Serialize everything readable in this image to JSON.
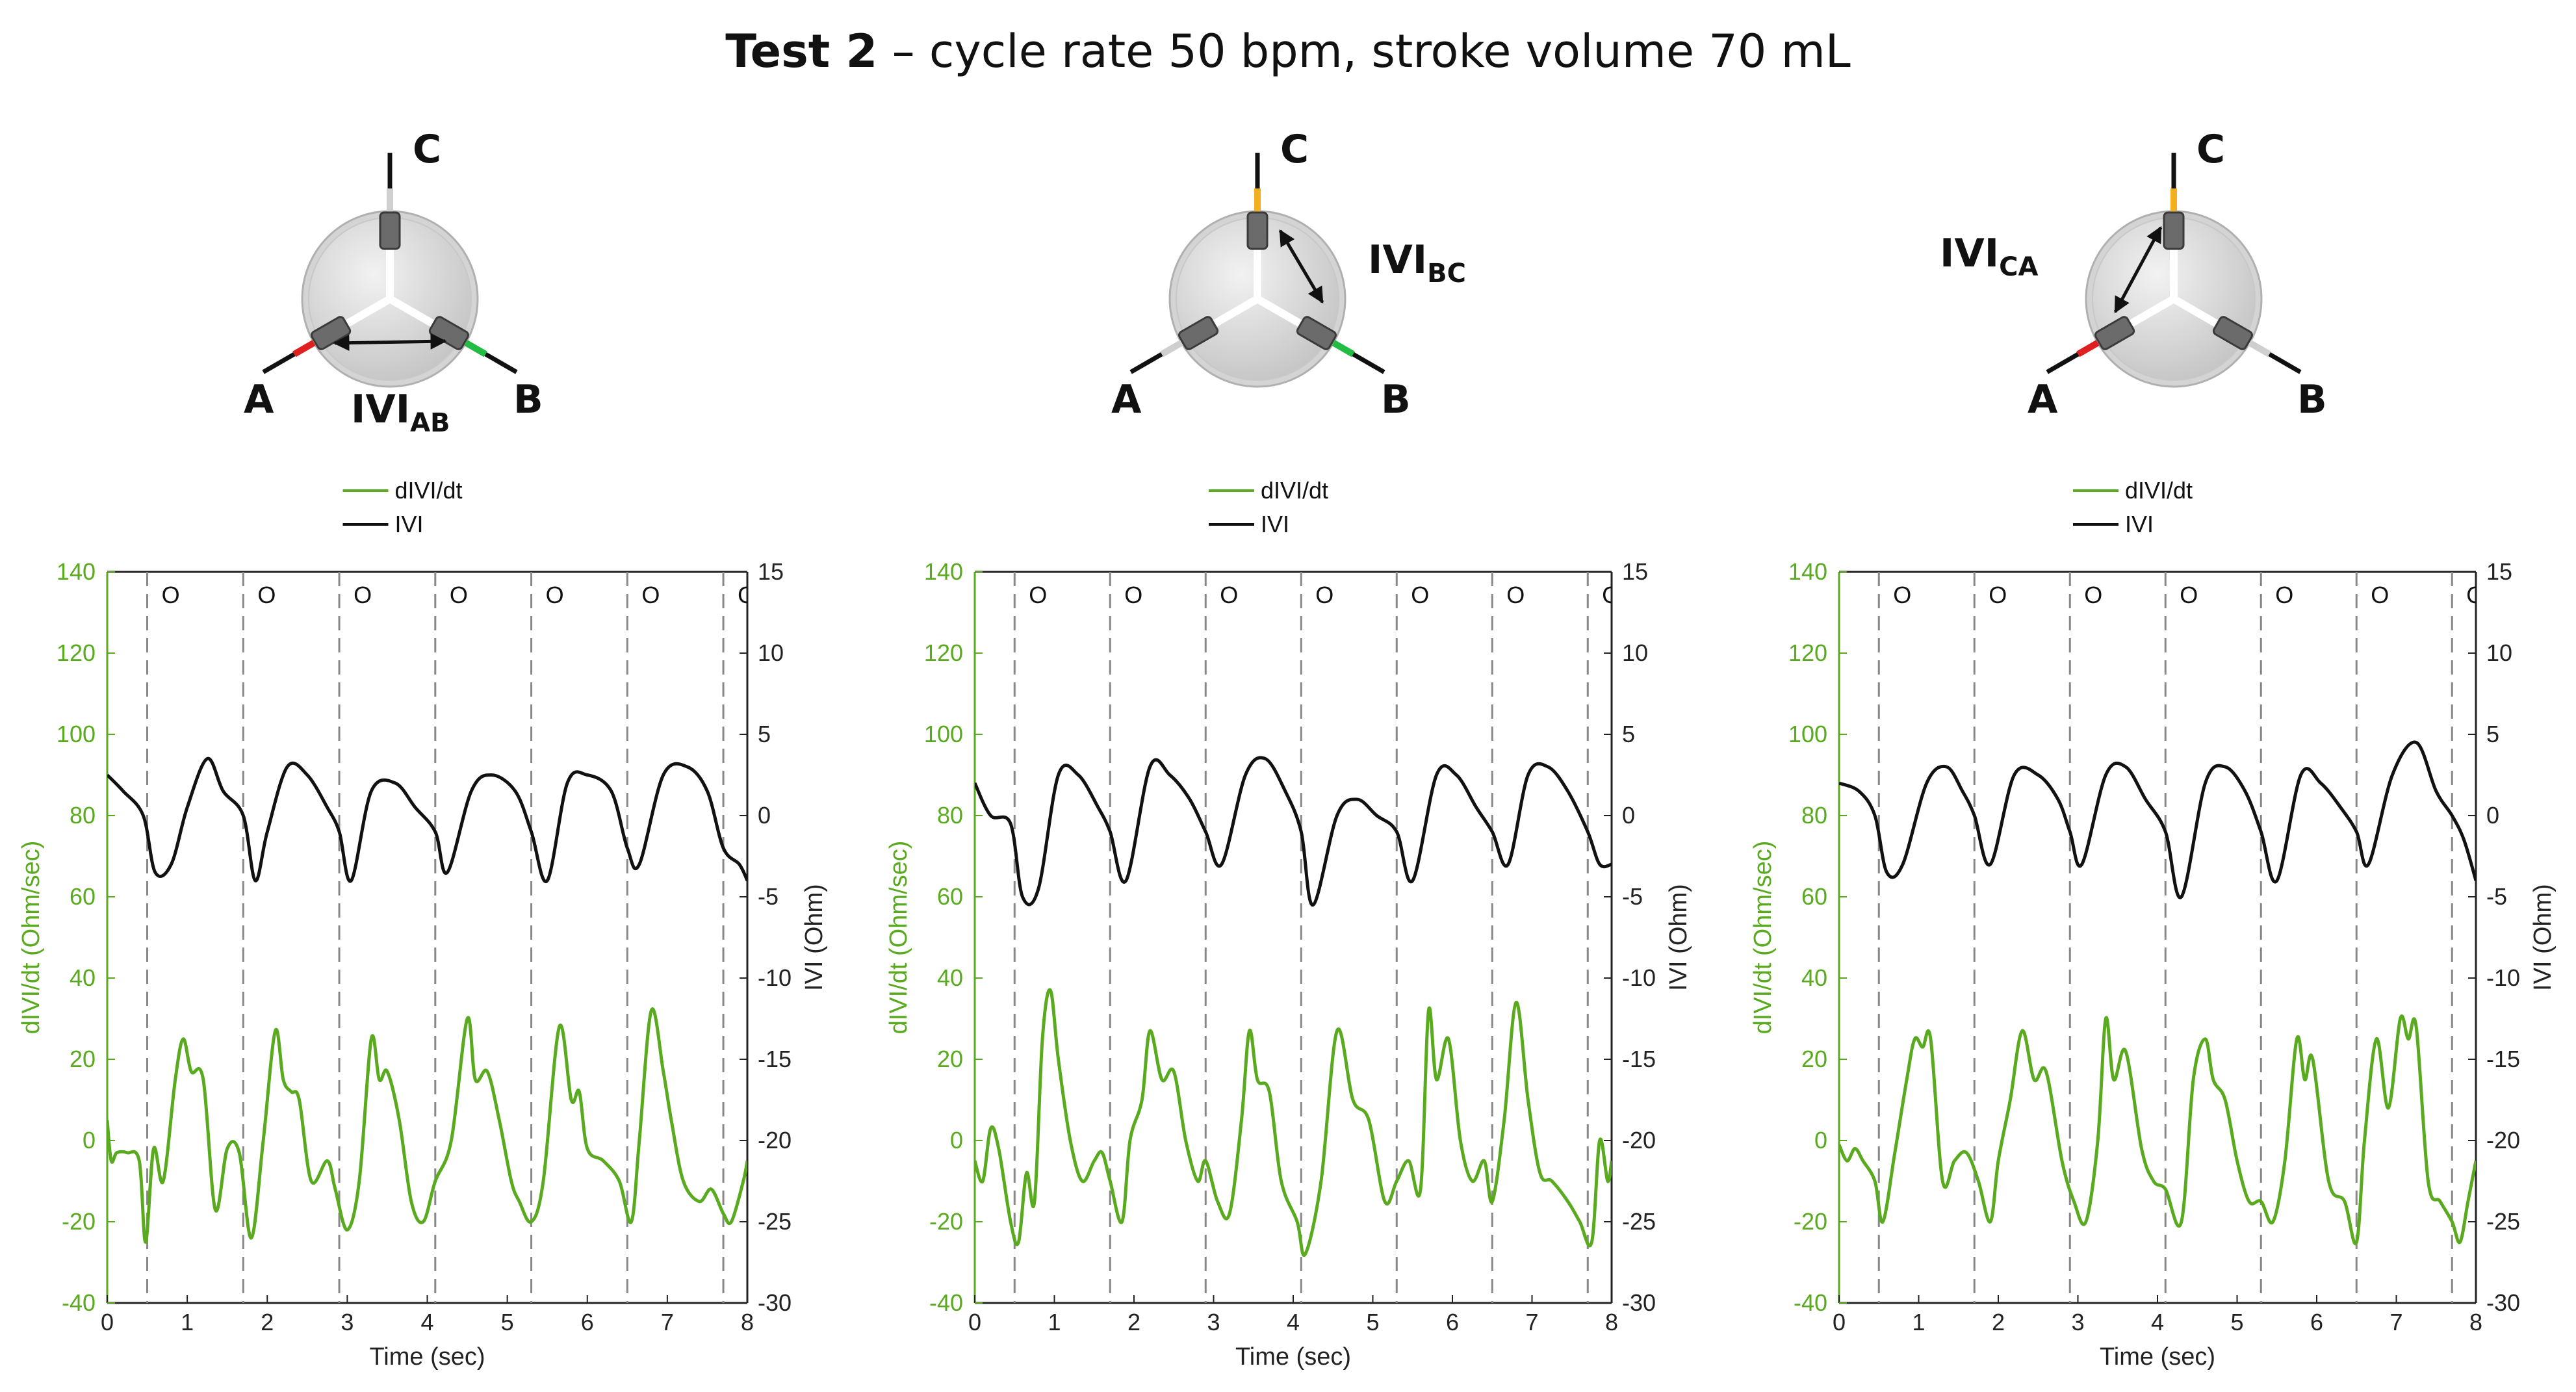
{
  "figure": {
    "title_bold": "Test 2",
    "title_rest": " – cycle rate 50 bpm, stroke volume 70 mL"
  },
  "colors": {
    "derivative": "#5aaa1f",
    "impedance": "#111111",
    "grid_dash": "#888888",
    "lead_a": "#e02020",
    "lead_b": "#22bb44",
    "lead_c": "#f2b01e"
  },
  "diagrams": [
    {
      "label_a": "A",
      "label_b": "B",
      "label_c": "C",
      "measure_prefix": "IVI",
      "measure_sub": "AB",
      "active_pair": "AB"
    },
    {
      "label_a": "A",
      "label_b": "B",
      "label_c": "C",
      "measure_prefix": "IVI",
      "measure_sub": "BC",
      "active_pair": "BC"
    },
    {
      "label_a": "A",
      "label_b": "B",
      "label_c": "C",
      "measure_prefix": "IVI",
      "measure_sub": "CA",
      "active_pair": "CA"
    }
  ],
  "chart_data": [
    {
      "type": "line",
      "legend": [
        "dIVI/dt",
        "IVI"
      ],
      "xlabel": "Time (sec)",
      "ylabel_left": "dIVI/dt (Ohm/sec)",
      "ylabel_right": "IVI (Ohm)",
      "xlim": [
        0,
        8
      ],
      "ylim_left": [
        -40,
        140
      ],
      "ylim_right": [
        -30,
        15
      ],
      "x_ticks": [
        0,
        1,
        2,
        3,
        4,
        5,
        6,
        7,
        8
      ],
      "y_left_ticks": [
        -40,
        -20,
        0,
        20,
        40,
        60,
        80,
        100,
        120,
        140
      ],
      "y_right_ticks": [
        -30,
        -25,
        -20,
        -15,
        -10,
        -5,
        0,
        5,
        10,
        15
      ],
      "cycle_lines": [
        0.5,
        1.7,
        2.9,
        4.1,
        5.3,
        6.5,
        7.7
      ],
      "cycle_marker": "O",
      "series": [
        {
          "name": "IVI",
          "axis": "right",
          "x": [
            0,
            0.2,
            0.45,
            0.6,
            0.8,
            1.0,
            1.25,
            1.45,
            1.7,
            1.85,
            2.0,
            2.25,
            2.5,
            2.75,
            2.9,
            3.05,
            3.3,
            3.6,
            3.85,
            4.1,
            4.25,
            4.55,
            4.8,
            5.1,
            5.3,
            5.5,
            5.75,
            6.0,
            6.3,
            6.5,
            6.65,
            6.95,
            7.25,
            7.5,
            7.7,
            7.9,
            8.0
          ],
          "values": [
            2.5,
            1.5,
            0,
            -3.5,
            -3,
            0.5,
            3.5,
            1.5,
            0,
            -4,
            -1,
            3,
            2.5,
            0.5,
            -1,
            -4,
            1.5,
            2,
            0.5,
            -1,
            -3.5,
            1.5,
            2.5,
            1.5,
            -1,
            -4,
            2,
            2.5,
            1.5,
            -2,
            -3,
            2.5,
            3,
            1.5,
            -2,
            -3,
            -4
          ]
        },
        {
          "name": "dIVI/dt",
          "axis": "left",
          "x": [
            0,
            0.05,
            0.12,
            0.25,
            0.4,
            0.48,
            0.58,
            0.7,
            0.85,
            0.95,
            1.05,
            1.2,
            1.35,
            1.5,
            1.65,
            1.8,
            1.95,
            2.1,
            2.2,
            2.3,
            2.4,
            2.55,
            2.75,
            2.85,
            3.0,
            3.15,
            3.3,
            3.4,
            3.5,
            3.65,
            3.8,
            3.95,
            4.1,
            4.3,
            4.5,
            4.6,
            4.75,
            4.9,
            5.05,
            5.15,
            5.3,
            5.45,
            5.65,
            5.8,
            5.9,
            6.0,
            6.2,
            6.4,
            6.55,
            6.65,
            6.8,
            6.95,
            7.05,
            7.2,
            7.4,
            7.55,
            7.7,
            7.8,
            7.95,
            8.0
          ],
          "values": [
            5,
            -5,
            -3,
            -3,
            -5,
            -25,
            -2,
            -10,
            15,
            25,
            17,
            15,
            -17,
            -2,
            -3,
            -24,
            0,
            27,
            15,
            12,
            10,
            -10,
            -5,
            -12,
            -22,
            -10,
            25,
            15,
            17,
            5,
            -15,
            -20,
            -10,
            0,
            30,
            15,
            17,
            5,
            -10,
            -15,
            -20,
            -10,
            28,
            10,
            12,
            -2,
            -5,
            -10,
            -20,
            0,
            32,
            17,
            5,
            -10,
            -15,
            -12,
            -18,
            -20,
            -10,
            -5
          ]
        }
      ]
    },
    {
      "type": "line",
      "legend": [
        "dIVI/dt",
        "IVI"
      ],
      "xlabel": "Time (sec)",
      "ylabel_left": "dIVI/dt (Ohm/sec)",
      "ylabel_right": "IVI (Ohm)",
      "xlim": [
        0,
        8
      ],
      "ylim_left": [
        -40,
        140
      ],
      "ylim_right": [
        -30,
        15
      ],
      "x_ticks": [
        0,
        1,
        2,
        3,
        4,
        5,
        6,
        7,
        8
      ],
      "y_left_ticks": [
        -40,
        -20,
        0,
        20,
        40,
        60,
        80,
        100,
        120,
        140
      ],
      "y_right_ticks": [
        -30,
        -25,
        -20,
        -15,
        -10,
        -5,
        0,
        5,
        10,
        15
      ],
      "cycle_lines": [
        0.5,
        1.7,
        2.9,
        4.1,
        5.3,
        6.5,
        7.7
      ],
      "cycle_marker": "O",
      "series": [
        {
          "name": "IVI",
          "axis": "right",
          "x": [
            0,
            0.2,
            0.45,
            0.6,
            0.8,
            1.05,
            1.3,
            1.55,
            1.7,
            1.9,
            2.2,
            2.45,
            2.7,
            2.9,
            3.1,
            3.4,
            3.65,
            3.9,
            4.1,
            4.25,
            4.55,
            4.8,
            5.05,
            5.3,
            5.5,
            5.8,
            6.05,
            6.3,
            6.5,
            6.7,
            6.95,
            7.2,
            7.45,
            7.7,
            7.85,
            8.0
          ],
          "values": [
            2,
            0,
            -0.5,
            -5,
            -4.5,
            2.5,
            2.5,
            0.5,
            -1,
            -4,
            3,
            2.5,
            1,
            -1,
            -3,
            2.5,
            3.5,
            1.5,
            -1,
            -5.5,
            0,
            1,
            0,
            -1,
            -4,
            2.5,
            2.5,
            0.5,
            -1,
            -3,
            2.5,
            3,
            1.5,
            -1,
            -3,
            -3
          ]
        },
        {
          "name": "dIVI/dt",
          "axis": "left",
          "x": [
            0,
            0.1,
            0.2,
            0.3,
            0.45,
            0.55,
            0.65,
            0.75,
            0.85,
            0.95,
            1.05,
            1.2,
            1.35,
            1.5,
            1.6,
            1.7,
            1.85,
            1.95,
            2.1,
            2.2,
            2.35,
            2.5,
            2.65,
            2.8,
            2.9,
            3.05,
            3.2,
            3.35,
            3.45,
            3.55,
            3.7,
            3.85,
            4.05,
            4.15,
            4.35,
            4.55,
            4.75,
            4.95,
            5.15,
            5.3,
            5.45,
            5.6,
            5.7,
            5.8,
            5.95,
            6.1,
            6.25,
            6.4,
            6.5,
            6.65,
            6.8,
            6.95,
            7.1,
            7.25,
            7.45,
            7.6,
            7.75,
            7.85,
            7.95,
            8.0
          ],
          "values": [
            -5,
            -10,
            3,
            -2,
            -20,
            -25,
            -8,
            -15,
            25,
            37,
            20,
            0,
            -10,
            -5,
            -3,
            -10,
            -20,
            0,
            10,
            27,
            15,
            17,
            0,
            -10,
            -5,
            -15,
            -18,
            5,
            27,
            15,
            12,
            -10,
            -20,
            -28,
            -10,
            27,
            10,
            5,
            -15,
            -10,
            -5,
            -12,
            32,
            15,
            25,
            0,
            -10,
            -5,
            -15,
            5,
            34,
            10,
            -8,
            -10,
            -15,
            -20,
            -25,
            0,
            -10,
            -5
          ]
        }
      ]
    },
    {
      "type": "line",
      "legend": [
        "dIVI/dt",
        "IVI"
      ],
      "xlabel": "Time (sec)",
      "ylabel_left": "dIVI/dt (Ohm/sec)",
      "ylabel_right": "IVI (Ohm)",
      "xlim": [
        0,
        8
      ],
      "ylim_left": [
        -40,
        140
      ],
      "ylim_right": [
        -30,
        15
      ],
      "x_ticks": [
        0,
        1,
        2,
        3,
        4,
        5,
        6,
        7,
        8
      ],
      "y_left_ticks": [
        -40,
        -20,
        0,
        20,
        40,
        60,
        80,
        100,
        120,
        140
      ],
      "y_right_ticks": [
        -30,
        -25,
        -20,
        -15,
        -10,
        -5,
        0,
        5,
        10,
        15
      ],
      "cycle_lines": [
        0.5,
        1.7,
        2.9,
        4.1,
        5.3,
        6.5,
        7.7
      ],
      "cycle_marker": "O",
      "series": [
        {
          "name": "IVI",
          "axis": "right",
          "x": [
            0,
            0.25,
            0.45,
            0.6,
            0.8,
            1.1,
            1.35,
            1.55,
            1.7,
            1.9,
            2.2,
            2.5,
            2.75,
            2.9,
            3.05,
            3.35,
            3.6,
            3.85,
            4.1,
            4.3,
            4.6,
            4.85,
            5.1,
            5.3,
            5.5,
            5.8,
            6.05,
            6.3,
            6.5,
            6.65,
            6.95,
            7.25,
            7.5,
            7.7,
            7.85,
            8.0
          ],
          "values": [
            2,
            1.5,
            0,
            -3.5,
            -3,
            2,
            3,
            1.5,
            0,
            -3,
            2.5,
            2.5,
            1,
            -1,
            -3,
            2.5,
            3,
            1,
            -1,
            -5,
            2,
            3,
            1.5,
            -1,
            -4,
            2.5,
            2,
            0.5,
            -1,
            -3,
            2.5,
            4.5,
            1.5,
            0,
            -1.5,
            -4
          ]
        },
        {
          "name": "dIVI/dt",
          "axis": "left",
          "x": [
            0,
            0.1,
            0.2,
            0.3,
            0.45,
            0.55,
            0.7,
            0.85,
            0.95,
            1.05,
            1.15,
            1.3,
            1.45,
            1.6,
            1.75,
            1.9,
            2.0,
            2.15,
            2.3,
            2.45,
            2.6,
            2.8,
            2.95,
            3.1,
            3.25,
            3.35,
            3.45,
            3.6,
            3.8,
            3.95,
            4.1,
            4.3,
            4.45,
            4.6,
            4.7,
            4.85,
            5.0,
            5.15,
            5.3,
            5.45,
            5.6,
            5.75,
            5.85,
            5.95,
            6.15,
            6.35,
            6.5,
            6.6,
            6.75,
            6.9,
            7.05,
            7.15,
            7.25,
            7.4,
            7.55,
            7.7,
            7.8,
            7.9,
            8.0
          ],
          "values": [
            -1,
            -5,
            -2,
            -5,
            -10,
            -20,
            -3,
            15,
            25,
            23,
            25,
            -10,
            -5,
            -3,
            -10,
            -20,
            -5,
            10,
            27,
            15,
            17,
            -5,
            -15,
            -20,
            0,
            30,
            15,
            22,
            -2,
            -10,
            -12,
            -20,
            15,
            25,
            15,
            10,
            -5,
            -15,
            -15,
            -20,
            -5,
            25,
            15,
            20,
            -10,
            -15,
            -25,
            0,
            25,
            8,
            30,
            25,
            28,
            -10,
            -15,
            -20,
            -25,
            -15,
            -5
          ]
        }
      ]
    }
  ]
}
